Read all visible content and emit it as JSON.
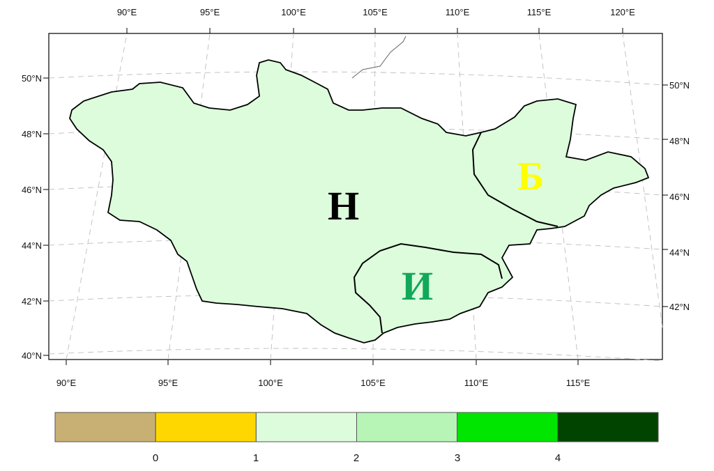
{
  "map": {
    "lon_ticks_top": [
      "90°E",
      "95°E",
      "100°E",
      "105°E",
      "110°E",
      "115°E",
      "120°E"
    ],
    "lon_ticks_bottom": [
      "90°E",
      "95°E",
      "100°E",
      "105°E",
      "110°E",
      "115°E"
    ],
    "lat_ticks_left": [
      "40°N",
      "42°N",
      "44°N",
      "46°N",
      "48°N",
      "50°N"
    ],
    "lat_ticks_right": [
      "42°N",
      "44°N",
      "46°N",
      "48°N",
      "50°N"
    ],
    "region_letters": [
      {
        "letter": "Н",
        "color": "#000000"
      },
      {
        "letter": "Б",
        "color": "#ffff00"
      },
      {
        "letter": "И",
        "color": "#11a85a"
      }
    ],
    "fill_colors": {
      "class_0_1": "#ffd700",
      "class_1_2": "#dcfcdc",
      "class_2_3": "#b6f5b6",
      "class_3_4": "#12dd12",
      "class_4_plus": "#004d00"
    }
  },
  "legend": {
    "labels": [
      "0",
      "1",
      "2",
      "3",
      "4"
    ],
    "colors": [
      "#c8b074",
      "#ffd700",
      "#dcfcdc",
      "#b6f5b6",
      "#00e600",
      "#004400"
    ]
  }
}
